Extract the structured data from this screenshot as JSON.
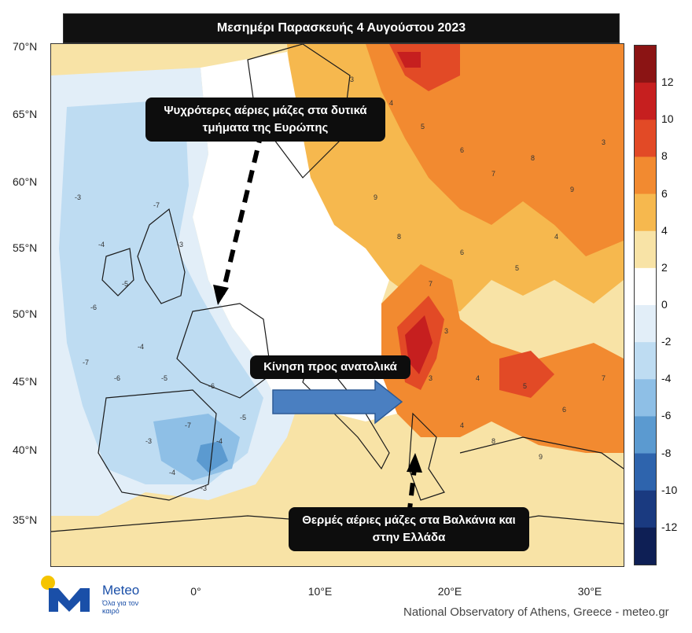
{
  "title": "Μεσημέρι Παρασκευής 4 Αυγούστου 2023",
  "map": {
    "latitudes": [
      "70°N",
      "65°N",
      "60°N",
      "55°N",
      "50°N",
      "45°N",
      "40°N",
      "35°N"
    ],
    "longitudes": [
      "0°",
      "10°E",
      "20°E",
      "30°E"
    ],
    "contour_values_west": [
      "-3",
      "-4",
      "-5",
      "-6",
      "-7"
    ],
    "contour_values_east": [
      "3",
      "4",
      "5",
      "6",
      "7",
      "8",
      "9"
    ]
  },
  "callouts": {
    "west_note_line1": "Ψυχρότερες αέριες μάζες στα δυτικά",
    "west_note_line2": "τμήματα της Ευρώπης",
    "movement_note": "Κίνηση προς ανατολικά",
    "east_note_line1": "Θερμές αέριες μάζες στα Βαλκάνια και",
    "east_note_line2": "στην Ελλάδα"
  },
  "legend": {
    "labels": [
      "12",
      "10",
      "8",
      "6",
      "4",
      "2",
      "0",
      "-2",
      "-4",
      "-6",
      "-8",
      "-10",
      "-12"
    ],
    "colors": [
      "#8b1414",
      "#c61f1f",
      "#e24a26",
      "#f28a30",
      "#f6b84e",
      "#f8e3a6",
      "#ffffff",
      "#e2eef8",
      "#bedcf2",
      "#8ebfe6",
      "#5b9ad0",
      "#2e64ad",
      "#1a3a80",
      "#0e1f55"
    ]
  },
  "logo": {
    "name": "Meteo",
    "tagline": "Όλα για τον καιρό"
  },
  "footer": "National Observatory of Athens, Greece - meteo.gr"
}
